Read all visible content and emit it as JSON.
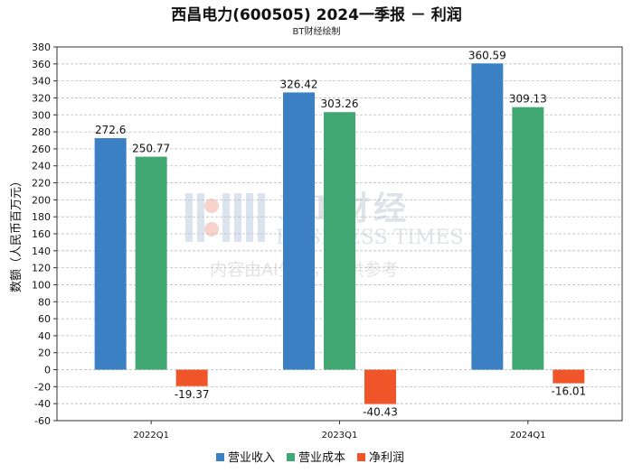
{
  "title": "西昌电力(600505) 2024一季报 － 利润",
  "subtitle": "BT财经绘制",
  "watermark": {
    "brand": "BT财经",
    "brand_en": "BUSINESS TIMES",
    "disclaimer": "内容由AI生成，仅供参考"
  },
  "chart_data": {
    "type": "bar",
    "title": "西昌电力(600505) 2024一季报 － 利润",
    "subtitle": "BT财经绘制",
    "xlabel": "",
    "ylabel": "数额（人民币百万元）",
    "categories": [
      "2022Q1",
      "2023Q1",
      "2024Q1"
    ],
    "ylim": [
      -60,
      380
    ],
    "yticks": [
      -60,
      -40,
      -20,
      0,
      20,
      40,
      60,
      80,
      100,
      120,
      140,
      160,
      180,
      200,
      220,
      240,
      260,
      280,
      300,
      320,
      340,
      360,
      380
    ],
    "grid": true,
    "legend_position": "bottom",
    "series": [
      {
        "name": "营业收入",
        "color": "#3a80c2",
        "values": [
          272.6,
          326.42,
          360.59
        ],
        "labels": [
          "272.6",
          "326.42",
          "360.59"
        ]
      },
      {
        "name": "营业成本",
        "color": "#42a873",
        "values": [
          250.77,
          303.26,
          309.13
        ],
        "labels": [
          "250.77",
          "303.26",
          "309.13"
        ]
      },
      {
        "name": "净利润",
        "color": "#f0552a",
        "values": [
          -19.37,
          -40.43,
          -16.01
        ],
        "labels": [
          "-19.37",
          "-40.43",
          "-16.01"
        ]
      }
    ]
  }
}
